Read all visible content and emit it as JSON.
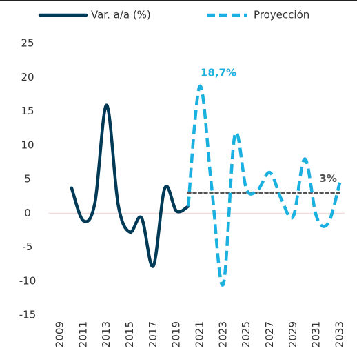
{
  "chart_data": {
    "type": "line",
    "series": [
      {
        "name": "Var. a/a (%)",
        "color": "#003a57",
        "style": "solid",
        "x": [
          2010,
          2011,
          2012,
          2013,
          2014,
          2015,
          2016,
          2017,
          2018,
          2019,
          2020
        ],
        "values": [
          3.7,
          -1.1,
          1.5,
          15.9,
          1.2,
          -2.8,
          -0.7,
          -7.8,
          3.7,
          0.3,
          1
        ]
      },
      {
        "name": "Proyección",
        "color": "#1ab0e0",
        "style": "dashed",
        "x": [
          2020,
          2021,
          2022,
          2023,
          2024,
          2025,
          2026,
          2027,
          2028,
          2029,
          2030,
          2031,
          2032,
          2033
        ],
        "values": [
          1,
          18.7,
          4,
          -10.5,
          11.5,
          3.5,
          3.5,
          6,
          2,
          -0.5,
          8,
          -0.5,
          -1.5,
          4.5
        ]
      },
      {
        "color": "#555555",
        "style": "dotted",
        "x": [
          2020,
          2033
        ],
        "values": [
          3,
          3
        ]
      }
    ],
    "annotations": [
      {
        "text": "18,7%",
        "x": 2021,
        "y": 18.7,
        "color": "#1ab0e0"
      },
      {
        "text": "3%",
        "x": 2032,
        "y": 3,
        "color": "#555555"
      }
    ],
    "xlim": [
      2008,
      2034
    ],
    "xticks": [
      2009,
      2011,
      2013,
      2015,
      2017,
      2019,
      2021,
      2023,
      2025,
      2027,
      2029,
      2031,
      2033
    ],
    "ylim": [
      -15,
      25
    ],
    "yticks": [
      -15,
      -10,
      -5,
      0,
      5,
      10,
      15,
      20,
      25
    ],
    "zero_line": true
  }
}
